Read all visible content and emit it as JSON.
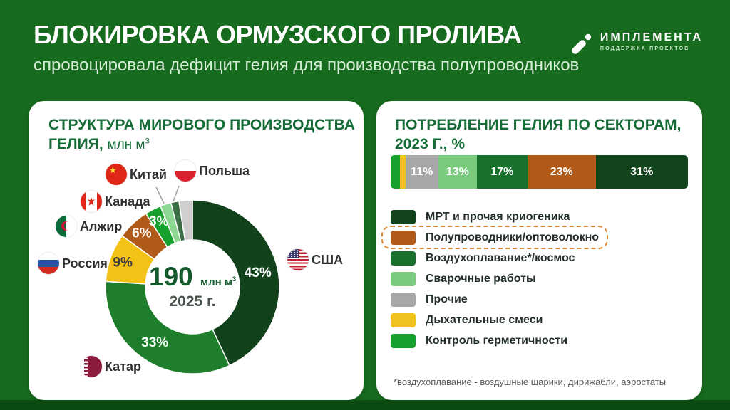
{
  "header": {
    "title": "БЛОКИРОВКА ОРМУЗСКОГО ПРОЛИВА",
    "subtitle": "спровоцировала дефицит гелия для производства полупроводников"
  },
  "logo": {
    "name": "ИМПЛЕМЕНТА",
    "tagline": "ПОДДЕРЖКА ПРОЕКТОВ"
  },
  "production_card": {
    "title_line1": "СТРУКТУРА МИРОВОГО ПРОИЗВОДСТВА",
    "title_line2_bold": "ГЕЛИЯ,",
    "title_unit": "млн м",
    "title_unit_sup": "3",
    "center_value": "190",
    "center_unit": "млн м",
    "center_unit_sup": "3",
    "center_year": "2025 г."
  },
  "consumption_card": {
    "title_line1": "ПОТРЕБЛЕНИЕ ГЕЛИЯ ПО СЕКТОРАМ,",
    "title_line2": "2023 Г., %",
    "footnote": "*воздухоплавание -  воздушные шарики, дирижабли, аэростаты",
    "legend": [
      {
        "label": "МРТ и прочая криогеника",
        "color": "#11431c",
        "highlight": false
      },
      {
        "label": "Полупроводники/оптоволокно",
        "color": "#b05a1a",
        "highlight": true
      },
      {
        "label": "Воздухоплавание*/космос",
        "color": "#17702c",
        "highlight": false
      },
      {
        "label": "Сварочные работы",
        "color": "#79ca7d",
        "highlight": false
      },
      {
        "label": "Прочие",
        "color": "#a7a7a7",
        "highlight": false
      },
      {
        "label": "Дыхательные смеси",
        "color": "#f1c11d",
        "highlight": false
      },
      {
        "label": "Контроль герметичности",
        "color": "#17a02e",
        "highlight": false
      }
    ]
  },
  "chart_data": [
    {
      "type": "pie",
      "subtype": "donut",
      "title": "СТРУКТУРА МИРОВОГО ПРОИЗВОДСТВА ГЕЛИЯ, млн м³",
      "center_total": "190 млн м³",
      "center_year": "2025 г.",
      "segments": [
        {
          "label": "США",
          "value": 43,
          "color": "#11421b",
          "pct_label": "43%",
          "pct_color": "#ffffff"
        },
        {
          "label": "Катар",
          "value": 33,
          "color": "#1e7e2c",
          "pct_label": "33%",
          "pct_color": "#ffffff"
        },
        {
          "label": "Россия",
          "value": 9,
          "color": "#f3c217",
          "pct_label": "9%",
          "pct_color": "#3c3c3c"
        },
        {
          "label": "Алжир",
          "value": 6,
          "color": "#b05a1a",
          "pct_label": "6%",
          "pct_color": "#ffffff"
        },
        {
          "label": "Канада",
          "value": 3,
          "color": "#17a02e",
          "pct_label": "3%",
          "pct_color": "#ffffff"
        },
        {
          "label": "Китай",
          "value": 2,
          "color": "#8ed793",
          "pct_label": "",
          "pct_color": ""
        },
        {
          "label": "Польша",
          "value": 1.5,
          "color": "#3c6e45",
          "pct_label": "",
          "pct_color": ""
        },
        {
          "label": "",
          "value": 2.5,
          "color": "#cfcfcf",
          "pct_label": "",
          "pct_color": ""
        }
      ]
    },
    {
      "type": "bar",
      "orientation": "horizontal-stacked",
      "title": "ПОТРЕБЛЕНИЕ ГЕЛИЯ ПО СЕКТОРАМ, 2023 г., %",
      "segments": [
        {
          "label": "Контроль герметичности",
          "value": 3,
          "color": "#17a02e",
          "pct_label": ""
        },
        {
          "label": "Дыхательные смеси",
          "value": 2,
          "color": "#f1c11d",
          "pct_label": ""
        },
        {
          "label": "Прочие",
          "value": 11,
          "color": "#a7a7a7",
          "pct_label": "11%"
        },
        {
          "label": "Сварочные работы",
          "value": 13,
          "color": "#79ca7d",
          "pct_label": "13%"
        },
        {
          "label": "Воздухоплавание*/космос",
          "value": 17,
          "color": "#17702c",
          "pct_label": "17%"
        },
        {
          "label": "Полупроводники/оптоволокно",
          "value": 23,
          "color": "#b05a1a",
          "pct_label": "23%"
        },
        {
          "label": "МРТ и прочая криогеника",
          "value": 31,
          "color": "#11431c",
          "pct_label": "31%"
        }
      ]
    }
  ]
}
